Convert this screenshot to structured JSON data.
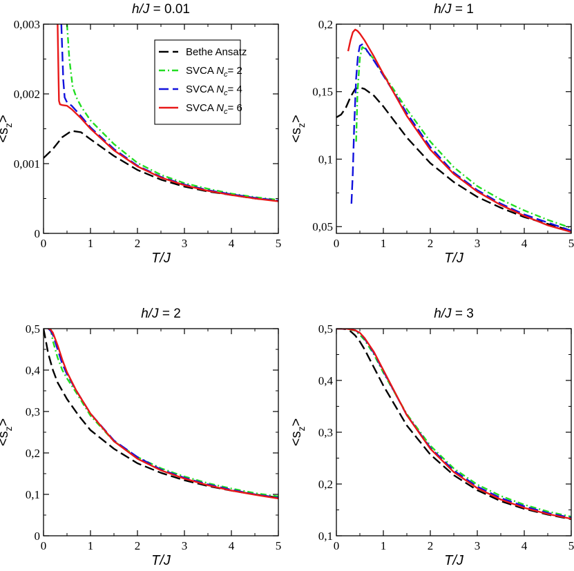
{
  "chart_data": [
    {
      "type": "line",
      "title_prefix": "h/J",
      "title_suffix": " = 0.01",
      "xlabel": "T/J",
      "ylabel_main": "<s",
      "ylabel_sub": "z",
      "ylabel_end": ">",
      "xlim": [
        0,
        5
      ],
      "ylim": [
        0,
        0.003
      ],
      "xticks": [
        0,
        1,
        2,
        3,
        4,
        5
      ],
      "xtick_labels": [
        "0",
        "1",
        "2",
        "3",
        "4",
        "5"
      ],
      "yticks": [
        0,
        0.001,
        0.002,
        0.003
      ],
      "ytick_labels": [
        "0",
        "0,001",
        "0,002",
        "0,003"
      ],
      "legend": {
        "position": "top-right",
        "entries": [
          {
            "series": "Bethe Ansatz",
            "label": "Bethe Ansatz",
            "sub": "",
            "tail": ""
          },
          {
            "series": "SVCA Nc=2",
            "label": "SVCA ",
            "italic": "N",
            "sub": "c",
            "tail": "= 2"
          },
          {
            "series": "SVCA Nc=4",
            "label": "SVCA ",
            "italic": "N",
            "sub": "c",
            "tail": "= 4"
          },
          {
            "series": "SVCA Nc=6",
            "label": "SVCA ",
            "italic": "N",
            "sub": "c",
            "tail": "= 6"
          }
        ]
      },
      "series": [
        {
          "name": "Bethe Ansatz",
          "color": "#000000",
          "style": "dash",
          "x": [
            0,
            0.2,
            0.4,
            0.6,
            0.8,
            1.0,
            1.5,
            2.0,
            2.5,
            3.0,
            3.5,
            4.0,
            4.5,
            5.0
          ],
          "y": [
            0.00108,
            0.00121,
            0.00138,
            0.00147,
            0.00145,
            0.00135,
            0.00111,
            0.00091,
            0.00077,
            0.00067,
            0.0006,
            0.00055,
            0.0005,
            0.00047
          ]
        },
        {
          "name": "SVCA Nc=2",
          "color": "#22dd22",
          "style": "dashdot",
          "x": [
            0.5,
            0.55,
            0.62,
            0.7,
            0.8,
            1.0,
            1.5,
            2.0,
            2.5,
            3.0,
            3.5,
            4.0,
            4.5,
            5.0
          ],
          "y": [
            0.003,
            0.0025,
            0.0021,
            0.00195,
            0.00182,
            0.00162,
            0.00128,
            0.00101,
            0.00084,
            0.00072,
            0.00064,
            0.00057,
            0.00052,
            0.00048
          ]
        },
        {
          "name": "SVCA Nc=4",
          "color": "#1111dd",
          "style": "dash",
          "x": [
            0.38,
            0.4,
            0.42,
            0.45,
            0.5,
            0.6,
            0.8,
            1.0,
            1.5,
            2.0,
            2.5,
            3.0,
            3.5,
            4.0,
            4.5,
            5.0
          ],
          "y": [
            0.003,
            0.0026,
            0.0022,
            0.00195,
            0.00188,
            0.00183,
            0.00168,
            0.00152,
            0.00121,
            0.00097,
            0.00081,
            0.0007,
            0.00062,
            0.00056,
            0.00051,
            0.00047
          ]
        },
        {
          "name": "SVCA Nc=6",
          "color": "#e81818",
          "style": "solid",
          "x": [
            0.3,
            0.31,
            0.32,
            0.33,
            0.35,
            0.4,
            0.5,
            0.6,
            0.8,
            1.0,
            1.5,
            2.0,
            2.5,
            3.0,
            3.5,
            4.0,
            4.5,
            5.0
          ],
          "y": [
            0.003,
            0.0026,
            0.0022,
            0.0019,
            0.00185,
            0.00184,
            0.00183,
            0.00178,
            0.00165,
            0.0015,
            0.00119,
            0.00096,
            0.0008,
            0.00069,
            0.00061,
            0.00055,
            0.0005,
            0.00046
          ]
        }
      ]
    },
    {
      "type": "line",
      "title_prefix": "h/J",
      "title_suffix": " = 1",
      "xlabel": "T/J",
      "ylabel_main": "<s",
      "ylabel_sub": "z",
      "ylabel_end": ">",
      "xlim": [
        0,
        5
      ],
      "ylim": [
        0.045,
        0.2
      ],
      "xticks": [
        0,
        1,
        2,
        3,
        4,
        5
      ],
      "xtick_labels": [
        "0",
        "1",
        "2",
        "3",
        "4",
        "5"
      ],
      "yticks": [
        0.05,
        0.1,
        0.15,
        0.2
      ],
      "ytick_labels": [
        "0,05",
        "0,1",
        "0,15",
        "0,2"
      ],
      "series": [
        {
          "name": "Bethe Ansatz",
          "color": "#000000",
          "style": "dash",
          "x": [
            0,
            0.1,
            0.2,
            0.3,
            0.4,
            0.5,
            0.6,
            0.8,
            1.0,
            1.5,
            2.0,
            2.5,
            3.0,
            3.5,
            4.0,
            4.5,
            5.0
          ],
          "y": [
            0.131,
            0.133,
            0.138,
            0.146,
            0.152,
            0.153,
            0.152,
            0.147,
            0.139,
            0.116,
            0.097,
            0.083,
            0.072,
            0.064,
            0.057,
            0.052,
            0.047
          ]
        },
        {
          "name": "SVCA Nc=2",
          "color": "#22dd22",
          "style": "dashdot",
          "x": [
            0.42,
            0.45,
            0.5,
            0.55,
            0.6,
            0.7,
            0.8,
            1.0,
            1.5,
            2.0,
            2.5,
            3.0,
            3.5,
            4.0,
            4.5,
            5.0
          ],
          "y": [
            0.113,
            0.15,
            0.175,
            0.183,
            0.182,
            0.178,
            0.174,
            0.163,
            0.137,
            0.113,
            0.094,
            0.08,
            0.07,
            0.062,
            0.055,
            0.049
          ]
        },
        {
          "name": "SVCA Nc=4",
          "color": "#1111dd",
          "style": "dash",
          "x": [
            0.32,
            0.35,
            0.38,
            0.42,
            0.46,
            0.5,
            0.55,
            0.6,
            0.7,
            0.8,
            1.0,
            1.5,
            2.0,
            2.5,
            3.0,
            3.5,
            4.0,
            4.5,
            5.0
          ],
          "y": [
            0.067,
            0.09,
            0.125,
            0.16,
            0.177,
            0.184,
            0.185,
            0.183,
            0.178,
            0.173,
            0.162,
            0.134,
            0.109,
            0.09,
            0.077,
            0.067,
            0.059,
            0.053,
            0.047
          ]
        },
        {
          "name": "SVCA Nc=6",
          "color": "#e81818",
          "style": "solid",
          "x": [
            0.25,
            0.3,
            0.35,
            0.4,
            0.45,
            0.5,
            0.6,
            0.7,
            0.8,
            1.0,
            1.5,
            2.0,
            2.5,
            3.0,
            3.5,
            4.0,
            4.5,
            5.0
          ],
          "y": [
            0.18,
            0.188,
            0.194,
            0.196,
            0.195,
            0.193,
            0.188,
            0.182,
            0.176,
            0.163,
            0.132,
            0.107,
            0.089,
            0.076,
            0.066,
            0.058,
            0.051,
            0.046
          ]
        }
      ]
    },
    {
      "type": "line",
      "title_prefix": "h/J",
      "title_suffix": " = 2",
      "xlabel": "T/J",
      "ylabel_main": "<s",
      "ylabel_sub": "z",
      "ylabel_end": ">",
      "xlim": [
        0,
        5
      ],
      "ylim": [
        0,
        0.5
      ],
      "xticks": [
        0,
        1,
        2,
        3,
        4,
        5
      ],
      "xtick_labels": [
        "0",
        "1",
        "2",
        "3",
        "4",
        "5"
      ],
      "yticks": [
        0,
        0.1,
        0.2,
        0.3,
        0.4,
        0.5
      ],
      "ytick_labels": [
        "0",
        "0,1",
        "0,2",
        "0,3",
        "0,4",
        "0,5"
      ],
      "series": [
        {
          "name": "Bethe Ansatz",
          "color": "#000000",
          "style": "dash",
          "x": [
            0,
            0.05,
            0.1,
            0.2,
            0.3,
            0.5,
            0.75,
            1.0,
            1.5,
            2.0,
            2.5,
            3.0,
            3.5,
            4.0,
            4.5,
            5.0
          ],
          "y": [
            0.5,
            0.47,
            0.44,
            0.4,
            0.37,
            0.33,
            0.29,
            0.255,
            0.21,
            0.175,
            0.152,
            0.134,
            0.12,
            0.109,
            0.1,
            0.092
          ]
        },
        {
          "name": "SVCA Nc=2",
          "color": "#22dd22",
          "style": "dashdot",
          "x": [
            0.15,
            0.2,
            0.3,
            0.4,
            0.5,
            0.7,
            1.0,
            1.5,
            2.0,
            2.5,
            3.0,
            3.5,
            4.0,
            4.5,
            5.0
          ],
          "y": [
            0.5,
            0.47,
            0.43,
            0.4,
            0.38,
            0.345,
            0.29,
            0.228,
            0.19,
            0.163,
            0.143,
            0.127,
            0.114,
            0.103,
            0.095
          ]
        },
        {
          "name": "SVCA Nc=4",
          "color": "#1111dd",
          "style": "dash",
          "x": [
            0.1,
            0.15,
            0.2,
            0.3,
            0.4,
            0.5,
            0.7,
            1.0,
            1.5,
            2.0,
            2.5,
            3.0,
            3.5,
            4.0,
            4.5,
            5.0
          ],
          "y": [
            0.5,
            0.495,
            0.485,
            0.45,
            0.415,
            0.39,
            0.35,
            0.295,
            0.23,
            0.19,
            0.16,
            0.14,
            0.124,
            0.111,
            0.1,
            0.092
          ]
        },
        {
          "name": "SVCA Nc=6",
          "color": "#e81818",
          "style": "solid",
          "x": [
            0.1,
            0.15,
            0.2,
            0.3,
            0.4,
            0.5,
            0.7,
            1.0,
            1.5,
            2.0,
            2.5,
            3.0,
            3.5,
            4.0,
            4.5,
            5.0
          ],
          "y": [
            0.5,
            0.498,
            0.49,
            0.46,
            0.425,
            0.395,
            0.35,
            0.295,
            0.228,
            0.186,
            0.158,
            0.138,
            0.122,
            0.109,
            0.099,
            0.09
          ]
        }
      ]
    },
    {
      "type": "line",
      "title_prefix": "h/J",
      "title_suffix": " = 3",
      "xlabel": "T/J",
      "ylabel_main": "<s",
      "ylabel_sub": "z",
      "ylabel_end": ">",
      "xlim": [
        0,
        5
      ],
      "ylim": [
        0.1,
        0.5
      ],
      "xticks": [
        0,
        1,
        2,
        3,
        4,
        5
      ],
      "xtick_labels": [
        "0",
        "1",
        "2",
        "3",
        "4",
        "5"
      ],
      "yticks": [
        0.1,
        0.2,
        0.3,
        0.4,
        0.5
      ],
      "ytick_labels": [
        "0,1",
        "0,2",
        "0,3",
        "0,4",
        "0,5"
      ],
      "series": [
        {
          "name": "Bethe Ansatz",
          "color": "#000000",
          "style": "dash",
          "x": [
            0,
            0.1,
            0.2,
            0.3,
            0.4,
            0.5,
            0.6,
            0.8,
            1.0,
            1.5,
            2.0,
            2.5,
            3.0,
            3.5,
            4.0,
            4.5,
            5.0
          ],
          "y": [
            0.5,
            0.5,
            0.499,
            0.495,
            0.487,
            0.475,
            0.46,
            0.425,
            0.39,
            0.313,
            0.257,
            0.217,
            0.188,
            0.167,
            0.152,
            0.141,
            0.132
          ]
        },
        {
          "name": "SVCA Nc=2",
          "color": "#22dd22",
          "style": "dashdot",
          "x": [
            0,
            0.2,
            0.4,
            0.5,
            0.6,
            0.8,
            1.0,
            1.5,
            2.0,
            2.5,
            3.0,
            3.5,
            4.0,
            4.5,
            5.0
          ],
          "y": [
            0.5,
            0.5,
            0.496,
            0.488,
            0.478,
            0.45,
            0.415,
            0.335,
            0.274,
            0.23,
            0.199,
            0.177,
            0.16,
            0.147,
            0.137
          ]
        },
        {
          "name": "SVCA Nc=4",
          "color": "#1111dd",
          "style": "dash",
          "x": [
            0,
            0.2,
            0.4,
            0.5,
            0.6,
            0.8,
            1.0,
            1.5,
            2.0,
            2.5,
            3.0,
            3.5,
            4.0,
            4.5,
            5.0
          ],
          "y": [
            0.5,
            0.5,
            0.497,
            0.491,
            0.481,
            0.453,
            0.418,
            0.333,
            0.27,
            0.226,
            0.195,
            0.173,
            0.157,
            0.144,
            0.135
          ]
        },
        {
          "name": "SVCA Nc=6",
          "color": "#e81818",
          "style": "solid",
          "x": [
            0,
            0.2,
            0.4,
            0.5,
            0.6,
            0.8,
            1.0,
            1.5,
            2.0,
            2.5,
            3.0,
            3.5,
            4.0,
            4.5,
            5.0
          ],
          "y": [
            0.5,
            0.5,
            0.497,
            0.492,
            0.482,
            0.455,
            0.42,
            0.333,
            0.268,
            0.223,
            0.192,
            0.17,
            0.154,
            0.142,
            0.133
          ]
        }
      ]
    }
  ]
}
